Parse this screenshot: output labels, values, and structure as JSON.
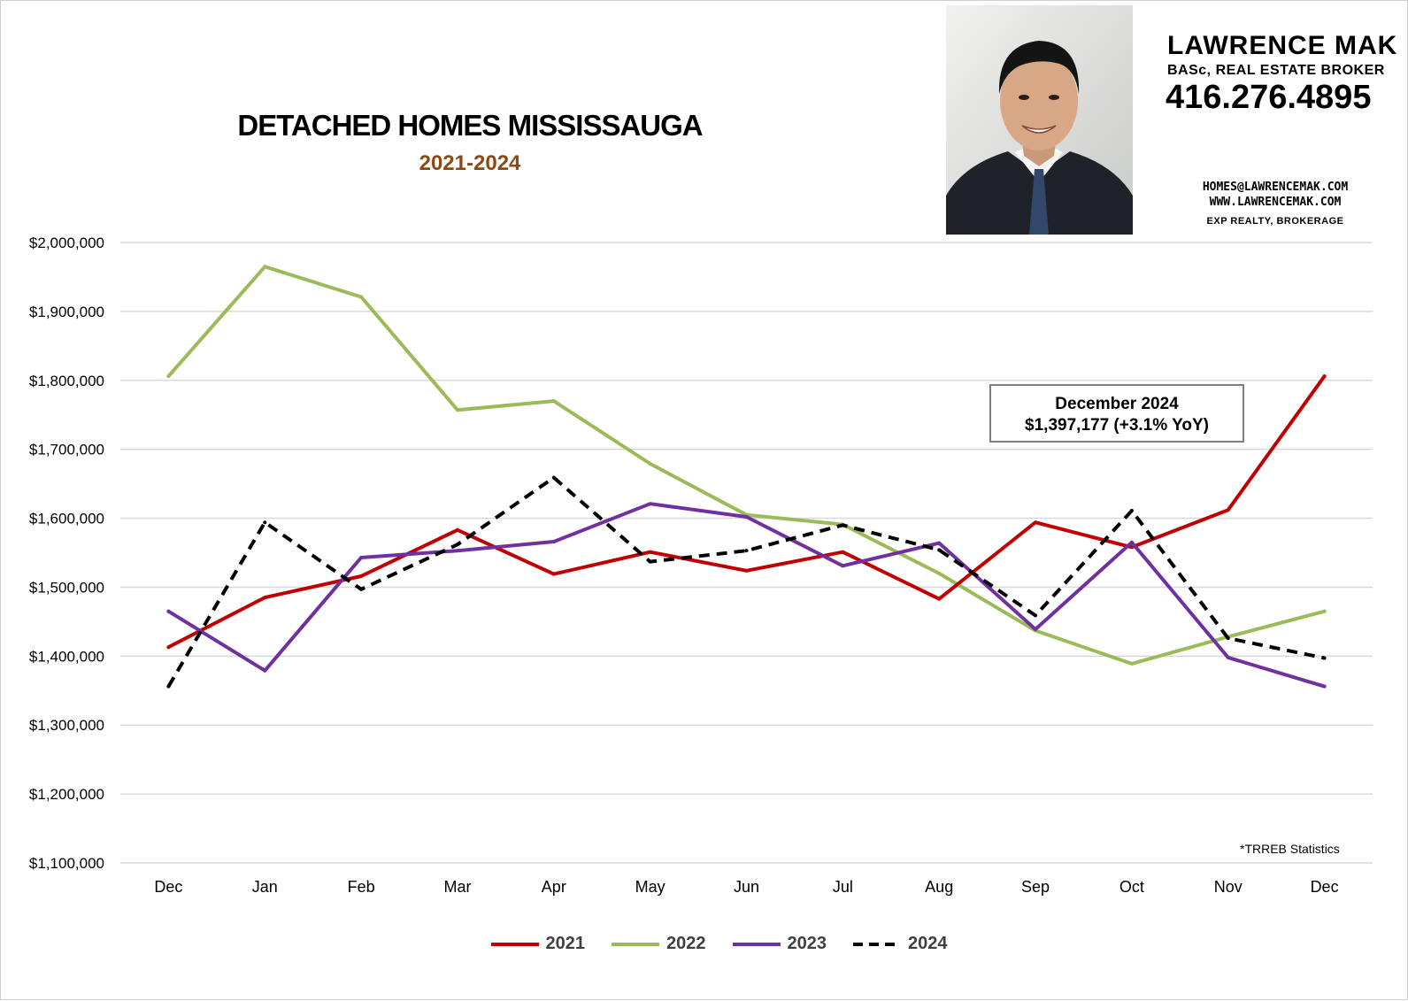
{
  "header": {
    "title": "DETACHED HOMES MISSISSAUGA",
    "subtitle": "2021-2024"
  },
  "agent": {
    "name": "LAWRENCE MAK",
    "credentials": "BASc, REAL ESTATE BROKER",
    "phone": "416.276.4895",
    "email": "HOMES@LAWRENCEMAK.COM",
    "website": "WWW.LAWRENCEMAK.COM",
    "brokerage": "EXP REALTY, BROKERAGE"
  },
  "callout": {
    "line1": "December 2024",
    "line2": "$1,397,177 (+3.1% YoY)"
  },
  "source_note": "*TRREB Statistics",
  "colors": {
    "grid": "#d9d9d9",
    "axis_text": "#000000",
    "title_sub": "#8a4a12"
  },
  "chart_data": {
    "type": "line",
    "title": "DETACHED HOMES MISSISSAUGA",
    "subtitle": "2021-2024",
    "xlabel": "",
    "ylabel": "",
    "categories": [
      "Dec",
      "Jan",
      "Feb",
      "Mar",
      "Apr",
      "May",
      "Jun",
      "Jul",
      "Aug",
      "Sep",
      "Oct",
      "Nov",
      "Dec"
    ],
    "ylim": [
      1100000,
      2000000
    ],
    "yticks": [
      1100000,
      1200000,
      1300000,
      1400000,
      1500000,
      1600000,
      1700000,
      1800000,
      1900000,
      2000000
    ],
    "ytick_labels": [
      "$1,100,000",
      "$1,200,000",
      "$1,300,000",
      "$1,400,000",
      "$1,500,000",
      "$1,600,000",
      "$1,700,000",
      "$1,800,000",
      "$1,900,000",
      "$2,000,000"
    ],
    "grid": true,
    "legend_position": "bottom",
    "series": [
      {
        "name": "2021",
        "color": "#c00000",
        "dashed": false,
        "values": [
          1413000,
          1485000,
          1516000,
          1583000,
          1519000,
          1551000,
          1524000,
          1551000,
          1483000,
          1594000,
          1558000,
          1612000,
          1806000
        ]
      },
      {
        "name": "2022",
        "color": "#9bbb59",
        "dashed": false,
        "values": [
          1806000,
          1965000,
          1921000,
          1757000,
          1770000,
          1679000,
          1605000,
          1591000,
          1520000,
          1437000,
          1389000,
          1428000,
          1465000
        ]
      },
      {
        "name": "2023",
        "color": "#7030a0",
        "dashed": false,
        "values": [
          1465000,
          1379000,
          1543000,
          1553000,
          1566000,
          1621000,
          1602000,
          1531000,
          1564000,
          1439000,
          1565000,
          1398000,
          1356000
        ]
      },
      {
        "name": "2024",
        "color": "#000000",
        "dashed": true,
        "values": [
          1356000,
          1594000,
          1497000,
          1562000,
          1659000,
          1537000,
          1553000,
          1590000,
          1554000,
          1459000,
          1611000,
          1426000,
          1397177
        ]
      }
    ]
  }
}
